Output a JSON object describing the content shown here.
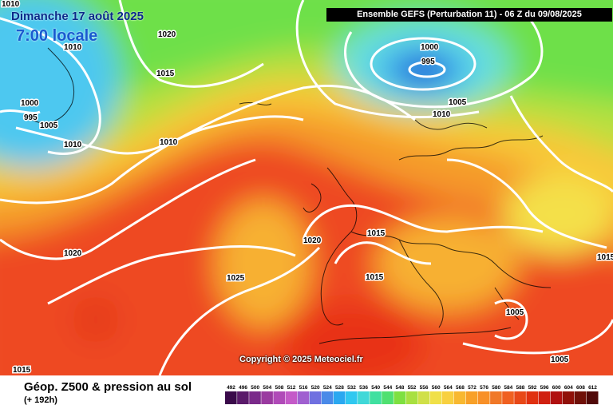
{
  "date_label": "Dimanche 17 août 2025",
  "time_label": "7:00 locale",
  "header": "Ensemble GEFS  (Perturbation 11)  -  06 Z du 09/08/2025",
  "copyright": "Copyright © 2025 Meteociel.fr",
  "footer_title": "Géop. Z500 & pression au sol",
  "footer_subtitle": "(+ 192h)",
  "colors": {
    "low_blue": "#1e5ad6",
    "cyan": "#4ec8f0",
    "green": "#6ee048",
    "yellow": "#f4e048",
    "orange": "#f59a2a",
    "red": "#ee4020",
    "isobar": "#ffffff"
  },
  "isobar_labels": [
    "1010",
    "1020",
    "1010",
    "1015",
    "1000",
    "995",
    "1005",
    "1010",
    "1000",
    "995",
    "1005",
    "1010",
    "1010",
    "1015",
    "1020",
    "1025",
    "1015",
    "1020",
    "1015",
    "1005",
    "1005",
    "1015",
    "1010"
  ],
  "colorbar": {
    "ticks": [
      "492",
      "496",
      "500",
      "504",
      "508",
      "512",
      "516",
      "520",
      "524",
      "528",
      "532",
      "536",
      "540",
      "544",
      "548",
      "552",
      "556",
      "560",
      "564",
      "568",
      "572",
      "576",
      "580",
      "584",
      "588",
      "592",
      "596",
      "600",
      "604",
      "608",
      "612"
    ],
    "colors": [
      "#3a0a4a",
      "#5a1a6a",
      "#7a2a8a",
      "#9a3aa0",
      "#b04ab8",
      "#c45ac8",
      "#a060d0",
      "#7070e0",
      "#4a8ae8",
      "#2aa8f0",
      "#30c8f0",
      "#40d8d8",
      "#40e0a0",
      "#50e070",
      "#7ee040",
      "#a8e040",
      "#d0e048",
      "#f0e048",
      "#f8d040",
      "#f8b830",
      "#f8a028",
      "#f89028",
      "#f07828",
      "#f06020",
      "#e84818",
      "#e03010",
      "#d02010",
      "#b01010",
      "#901008",
      "#701008",
      "#500808"
    ]
  }
}
